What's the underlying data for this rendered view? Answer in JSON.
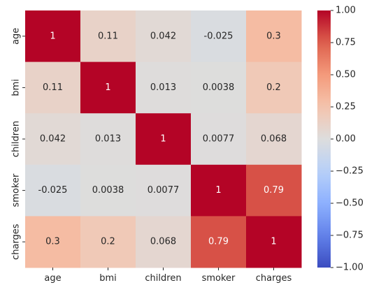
{
  "chart_data": {
    "type": "heatmap",
    "title": "",
    "xlabel": "",
    "ylabel": "",
    "x_labels": [
      "age",
      "bmi",
      "children",
      "smoker",
      "charges"
    ],
    "y_labels": [
      "age",
      "bmi",
      "children",
      "smoker",
      "charges"
    ],
    "values": [
      [
        1,
        0.11,
        0.042,
        -0.025,
        0.3
      ],
      [
        0.11,
        1,
        0.013,
        0.0038,
        0.2
      ],
      [
        0.042,
        0.013,
        1,
        0.0077,
        0.068
      ],
      [
        -0.025,
        0.0038,
        0.0077,
        1,
        0.79
      ],
      [
        0.3,
        0.2,
        0.068,
        0.79,
        1
      ]
    ],
    "cell_labels": [
      [
        "1",
        "0.11",
        "0.042",
        "-0.025",
        "0.3"
      ],
      [
        "0.11",
        "1",
        "0.013",
        "0.0038",
        "0.2"
      ],
      [
        "0.042",
        "0.013",
        "1",
        "0.0077",
        "0.068"
      ],
      [
        "-0.025",
        "0.0038",
        "0.0077",
        "1",
        "0.79"
      ],
      [
        "0.3",
        "0.2",
        "0.068",
        "0.79",
        "1"
      ]
    ],
    "colormap": "coolwarm",
    "vmin": -1,
    "vmax": 1,
    "colorbar": {
      "ticks": [
        1,
        0.75,
        0.5,
        0.25,
        0,
        -0.25,
        -0.5,
        -0.75,
        -1
      ],
      "tick_labels": [
        "1.00",
        "0.75",
        "0.50",
        "0.25",
        "0.00",
        "−0.25",
        "−0.50",
        "−0.75",
        "−1.00"
      ],
      "position": "right"
    }
  }
}
